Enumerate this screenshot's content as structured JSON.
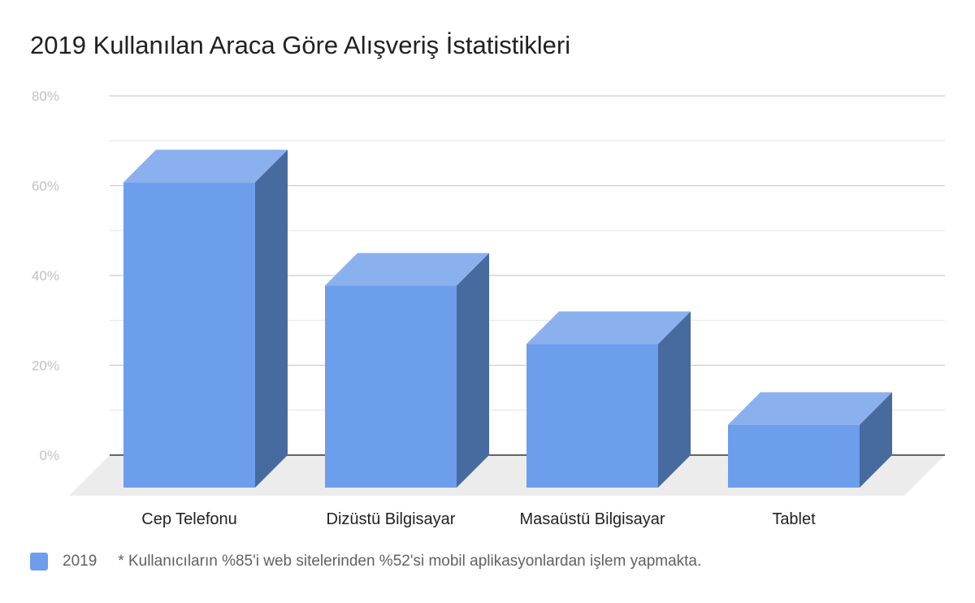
{
  "chart_data": {
    "type": "bar",
    "title": "2019 Kullanılan Araca Göre Alışveriş İstatistikleri",
    "categories": [
      "Cep Telefonu",
      "Dizüstü Bilgisayar",
      "Masaüstü Bilgisayar",
      "Tablet"
    ],
    "series": [
      {
        "name": "2019",
        "values": [
          68,
          45,
          32,
          14
        ]
      }
    ],
    "ylim": [
      0,
      80
    ],
    "yticks": [
      "0%",
      "20%",
      "40%",
      "60%",
      "80%"
    ],
    "xlabel": "",
    "ylabel": "",
    "grid": true,
    "legend": "bottom-left",
    "style": "3d",
    "note": "* Kullanıcıların %85'i web sitelerinden %52'si mobil aplikasyonlardan işlem yapmakta.",
    "colors": {
      "front": "#6d9eeb",
      "top": "#8ab0ee",
      "side": "#476a9f",
      "floor": "#ececec",
      "grid": "#cccccc",
      "axis": "#333333",
      "tick_text": "#c2c2c2",
      "category_text": "#212121"
    }
  }
}
